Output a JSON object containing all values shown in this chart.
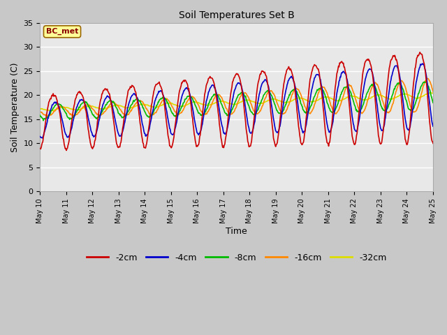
{
  "title": "Soil Temperatures Set B",
  "xlabel": "Time",
  "ylabel": "Soil Temperature (C)",
  "ylim": [
    0,
    35
  ],
  "annotation": "BC_met",
  "fig_bg": "#c8c8c8",
  "plot_bg": "#e8e8e8",
  "series": {
    "-2cm": {
      "color": "#cc0000",
      "lw": 1.2
    },
    "-4cm": {
      "color": "#0000cc",
      "lw": 1.2
    },
    "-8cm": {
      "color": "#00bb00",
      "lw": 1.2
    },
    "-16cm": {
      "color": "#ff8800",
      "lw": 1.2
    },
    "-32cm": {
      "color": "#dddd00",
      "lw": 1.2
    }
  },
  "xtick_labels": [
    "May 10",
    "May 11",
    "May 12",
    "May 13",
    "May 14",
    "May 15",
    "May 16",
    "May 17",
    "May 18",
    "May 19",
    "May 20",
    "May 21",
    "May 22",
    "May 23",
    "May 24",
    "May 25"
  ],
  "ytick_vals": [
    0,
    5,
    10,
    15,
    20,
    25,
    30,
    35
  ]
}
